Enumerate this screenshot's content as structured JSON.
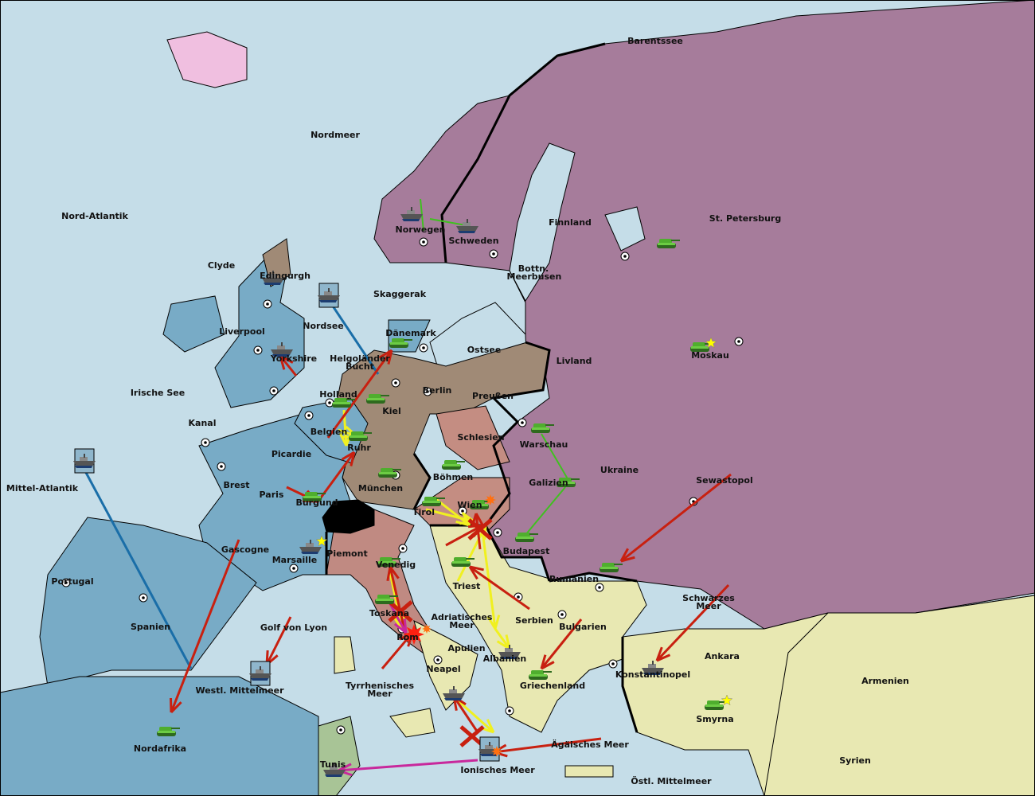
{
  "map": {
    "colors": {
      "water": "#c5dde8",
      "england": "#78abc6",
      "france": "#78abc6",
      "russia": "#a67c9b",
      "germany": "#a08a76",
      "austria": "#c48d82",
      "italy": "#c08a82",
      "neutral": "#e8e8b2",
      "turkey": "#e8e8b2",
      "tunis": "#a8c496",
      "iceland": "#f0bfe0",
      "move": "#c82010",
      "support": "#f0f020",
      "hold_support": "#40c020",
      "convoy": "#1a6ea8",
      "retreat": "#c8289c"
    },
    "provinces": [
      "Barentssee",
      "Nordmeer",
      "Nord-Atlantik",
      "Clyde",
      "Edingurgh",
      "Liverpool",
      "Nordsee",
      "Yorkshire",
      "Irische See",
      "Helgoländer Bucht",
      "Dänemark",
      "Ostsee",
      "Skaggerak",
      "Norwegen",
      "Schweden",
      "Finnland",
      "St. Petersburg",
      "Bottn. Meerbusen",
      "Livland",
      "Moskau",
      "Holland",
      "Kiel",
      "Berlin",
      "Preußen",
      "Kanal",
      "Belgien",
      "Ruhr",
      "Schlesien",
      "Warschau",
      "Picardie",
      "Brest",
      "Mittel-Atlantik",
      "Paris",
      "Burgund",
      "München",
      "Böhmen",
      "Galizien",
      "Ukraine",
      "Sewastopol",
      "Tirol",
      "Wien",
      "Budapest",
      "Gascogne",
      "Piemont",
      "Marsaille",
      "Venedig",
      "Rumänien",
      "Portugal",
      "Triest",
      "Schwarzes Meer",
      "Toskana",
      "Adriatisches Meer",
      "Serbien",
      "Spanien",
      "Golf von Lyon",
      "Bulgarien",
      "Rom",
      "Apulien",
      "Albanien",
      "Ankara",
      "Neapel",
      "Konstantinopel",
      "Armenien",
      "Griechenland",
      "Westl. Mittelmeer",
      "Tyrrhenisches Meer",
      "Smyrna",
      "Nordafrika",
      "Ägäisches Meer",
      "Syrien",
      "Tunis",
      "Ionisches Meer",
      "Östl. Mittelmeer"
    ],
    "units": [
      {
        "type": "fleet",
        "province": "Norwegen"
      },
      {
        "type": "fleet",
        "province": "Schweden"
      },
      {
        "type": "fleet",
        "province": "Edingurgh"
      },
      {
        "type": "fleet",
        "province": "Nordsee"
      },
      {
        "type": "fleet",
        "province": "Yorkshire"
      },
      {
        "type": "fleet",
        "province": "Mittel-Atlantik"
      },
      {
        "type": "fleet",
        "province": "Marsaille"
      },
      {
        "type": "fleet",
        "province": "Albanien"
      },
      {
        "type": "fleet",
        "province": "Konstantinopel"
      },
      {
        "type": "fleet",
        "province": "Westl. Mittelmeer"
      },
      {
        "type": "fleet",
        "province": "Neapel"
      },
      {
        "type": "fleet",
        "province": "Ionisches Meer"
      },
      {
        "type": "fleet",
        "province": "Tunis"
      },
      {
        "type": "army",
        "province": "St. Petersburg"
      },
      {
        "type": "army",
        "province": "Moskau"
      },
      {
        "type": "army",
        "province": "Dänemark"
      },
      {
        "type": "army",
        "province": "Kiel"
      },
      {
        "type": "army",
        "province": "Holland"
      },
      {
        "type": "army",
        "province": "Ruhr"
      },
      {
        "type": "army",
        "province": "Burgund"
      },
      {
        "type": "army",
        "province": "München"
      },
      {
        "type": "army",
        "province": "Böhmen"
      },
      {
        "type": "army",
        "province": "Warschau"
      },
      {
        "type": "army",
        "province": "Galizien"
      },
      {
        "type": "army",
        "province": "Budapest"
      },
      {
        "type": "army",
        "province": "Tirol"
      },
      {
        "type": "army",
        "province": "Wien"
      },
      {
        "type": "army",
        "province": "Rumänien"
      },
      {
        "type": "army",
        "province": "Venedig"
      },
      {
        "type": "army",
        "province": "Triest"
      },
      {
        "type": "army",
        "province": "Toskana"
      },
      {
        "type": "army",
        "province": "Griechenland"
      },
      {
        "type": "army",
        "province": "Smyrna"
      },
      {
        "type": "army",
        "province": "Nordafrika"
      }
    ]
  }
}
